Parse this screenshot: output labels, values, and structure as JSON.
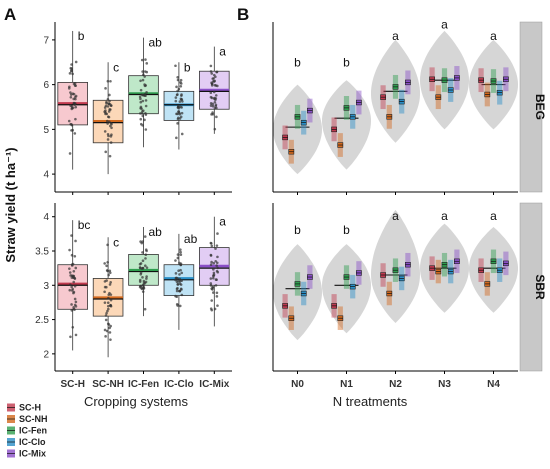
{
  "panels": {
    "left_letter": "A",
    "right_letter": "B"
  },
  "y_axis_title": "Straw yield (t ha⁻¹)",
  "facets": [
    "BEG",
    "SBR"
  ],
  "legend": [
    {
      "label": "SC-H",
      "color": "#c0394e"
    },
    {
      "label": "SC-NH",
      "color": "#d2691e"
    },
    {
      "label": "IC-Fen",
      "color": "#2f9e4f"
    },
    {
      "label": "IC-Clo",
      "color": "#2a8fc7"
    },
    {
      "label": "IC-Mix",
      "color": "#8a4fc7"
    }
  ],
  "chart_data": [
    {
      "type": "box",
      "panel": "A",
      "facet": "BEG",
      "xlabel": "Cropping systems",
      "categories": [
        "SC-H",
        "SC-NH",
        "IC-Fen",
        "IC-Clo",
        "IC-Mix"
      ],
      "ylim": [
        3.6,
        7.4
      ],
      "yticks": [
        4,
        5,
        6,
        7
      ],
      "boxes": [
        {
          "name": "SC-H",
          "q1": 5.1,
          "median": 5.55,
          "q3": 6.05,
          "whisker_low": 4.1,
          "whisker_high": 7.2,
          "mean": 5.58,
          "letter": "b",
          "fill": "#f7c9cf",
          "edge": "#c0394e"
        },
        {
          "name": "SC-NH",
          "q1": 4.7,
          "median": 5.15,
          "q3": 5.65,
          "whisker_low": 4.0,
          "whisker_high": 6.5,
          "mean": 5.18,
          "letter": "c",
          "fill": "#fcd8b8",
          "edge": "#d2691e"
        },
        {
          "name": "IC-Fen",
          "q1": 5.35,
          "median": 5.78,
          "q3": 6.2,
          "whisker_low": 4.6,
          "whisker_high": 7.05,
          "mean": 5.8,
          "letter": "ab",
          "fill": "#bfe8c9",
          "edge": "#2f9e4f"
        },
        {
          "name": "IC-Clo",
          "q1": 5.2,
          "median": 5.55,
          "q3": 5.85,
          "whisker_low": 4.55,
          "whisker_high": 6.5,
          "mean": 5.55,
          "letter": "b",
          "fill": "#bfe3f5",
          "edge": "#2a8fc7"
        },
        {
          "name": "IC-Mix",
          "q1": 5.45,
          "median": 5.85,
          "q3": 6.3,
          "whisker_low": 4.9,
          "whisker_high": 6.85,
          "mean": 5.88,
          "letter": "a",
          "fill": "#e2cdf4",
          "edge": "#8a4fc7"
        }
      ]
    },
    {
      "type": "box",
      "panel": "A",
      "facet": "SBR",
      "xlabel": "Cropping systems",
      "categories": [
        "SC-H",
        "SC-NH",
        "IC-Fen",
        "IC-Clo",
        "IC-Mix"
      ],
      "ylim": [
        1.75,
        4.2
      ],
      "yticks": [
        2,
        2.5,
        3,
        3.5,
        4
      ],
      "boxes": [
        {
          "name": "SC-H",
          "q1": 2.65,
          "median": 3.0,
          "q3": 3.3,
          "whisker_low": 2.05,
          "whisker_high": 3.95,
          "mean": 3.02,
          "letter": "bc",
          "fill": "#f7c9cf",
          "edge": "#c0394e"
        },
        {
          "name": "SC-NH",
          "q1": 2.55,
          "median": 2.8,
          "q3": 3.1,
          "whisker_low": 1.95,
          "whisker_high": 3.7,
          "mean": 2.82,
          "letter": "c",
          "fill": "#fcd8b8",
          "edge": "#d2691e"
        },
        {
          "name": "IC-Fen",
          "q1": 3.0,
          "median": 3.2,
          "q3": 3.45,
          "whisker_low": 2.55,
          "whisker_high": 3.85,
          "mean": 3.22,
          "letter": "ab",
          "fill": "#bfe8c9",
          "edge": "#2f9e4f"
        },
        {
          "name": "IC-Clo",
          "q1": 2.85,
          "median": 3.08,
          "q3": 3.3,
          "whisker_low": 2.35,
          "whisker_high": 3.75,
          "mean": 3.1,
          "letter": "ab",
          "fill": "#bfe3f5",
          "edge": "#2a8fc7"
        },
        {
          "name": "IC-Mix",
          "q1": 3.0,
          "median": 3.25,
          "q3": 3.55,
          "whisker_low": 2.4,
          "whisker_high": 4.0,
          "mean": 3.28,
          "letter": "a",
          "fill": "#e2cdf4",
          "edge": "#8a4fc7"
        }
      ]
    },
    {
      "type": "violin",
      "panel": "B",
      "facet": "BEG",
      "xlabel": "N treatments",
      "categories": [
        "N0",
        "N1",
        "N2",
        "N3",
        "N4"
      ],
      "ylim": [
        3.6,
        7.4
      ],
      "group_means": [
        5.05,
        5.25,
        5.85,
        6.1,
        6.0
      ],
      "letters": [
        "b",
        "b",
        "a",
        "a",
        "a"
      ],
      "letter_y": [
        6.4,
        6.4,
        7.0,
        7.25,
        7.0
      ],
      "violin_range": [
        [
          4.0,
          6.0
        ],
        [
          4.1,
          6.1
        ],
        [
          4.7,
          7.0
        ],
        [
          5.0,
          7.2
        ],
        [
          5.0,
          7.0
        ]
      ],
      "violin_maxwidth_y": [
        5.0,
        5.2,
        5.8,
        6.1,
        6.0
      ],
      "series": [
        {
          "name": "SC-H",
          "means": [
            4.82,
            5.0,
            5.72,
            6.12,
            6.1
          ]
        },
        {
          "name": "SC-NH",
          "means": [
            4.5,
            4.65,
            5.28,
            5.72,
            5.78
          ]
        },
        {
          "name": "IC-Fen",
          "means": [
            5.28,
            5.48,
            5.95,
            6.1,
            6.08
          ]
        },
        {
          "name": "IC-Clo",
          "means": [
            5.15,
            5.28,
            5.62,
            5.88,
            5.82
          ]
        },
        {
          "name": "IC-Mix",
          "means": [
            5.42,
            5.6,
            6.05,
            6.15,
            6.12
          ]
        }
      ]
    },
    {
      "type": "violin",
      "panel": "B",
      "facet": "SBR",
      "xlabel": "N treatments",
      "categories": [
        "N0",
        "N1",
        "N2",
        "N3",
        "N4"
      ],
      "ylim": [
        1.75,
        4.2
      ],
      "group_means": [
        2.95,
        3.0,
        3.15,
        3.25,
        3.25
      ],
      "letters": [
        "b",
        "b",
        "a",
        "a",
        "a"
      ],
      "letter_y": [
        3.75,
        3.75,
        3.95,
        3.95,
        3.95
      ],
      "violin_range": [
        [
          2.2,
          3.6
        ],
        [
          2.3,
          3.6
        ],
        [
          2.45,
          4.1
        ],
        [
          2.6,
          3.9
        ],
        [
          2.6,
          3.85
        ]
      ],
      "violin_maxwidth_y": [
        2.9,
        3.0,
        3.15,
        3.25,
        3.25
      ],
      "series": [
        {
          "name": "SC-H",
          "means": [
            2.7,
            2.7,
            3.15,
            3.25,
            3.22
          ]
        },
        {
          "name": "SC-NH",
          "means": [
            2.52,
            2.52,
            2.88,
            3.2,
            3.02
          ]
        },
        {
          "name": "IC-Fen",
          "means": [
            3.02,
            3.12,
            3.22,
            3.3,
            3.35
          ]
        },
        {
          "name": "IC-Clo",
          "means": [
            2.88,
            2.98,
            3.1,
            3.2,
            3.22
          ]
        },
        {
          "name": "IC-Mix",
          "means": [
            3.12,
            3.18,
            3.3,
            3.35,
            3.32
          ]
        }
      ]
    }
  ]
}
